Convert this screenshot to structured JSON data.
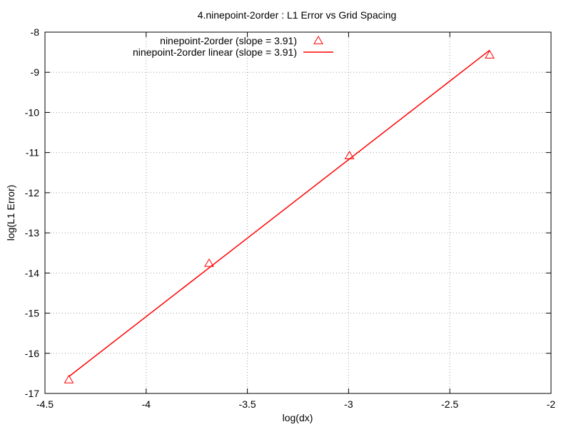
{
  "chart_data": {
    "type": "line",
    "title": "4.ninepoint-2order : L1 Error vs Grid Spacing",
    "xlabel": "log(dx)",
    "ylabel": "log(L1 Error)",
    "xlim": [
      -4.5,
      -2
    ],
    "ylim": [
      -17,
      -8
    ],
    "xticks": [
      -4.5,
      -4,
      -3.5,
      -3,
      -2.5,
      -2
    ],
    "xtick_labels": [
      "-4.5",
      "-4",
      "-3.5",
      "-3",
      "-2.5",
      "-2"
    ],
    "yticks": [
      -17,
      -16,
      -15,
      -14,
      -13,
      -12,
      -11,
      -10,
      -9,
      -8
    ],
    "ytick_labels": [
      "-17",
      "-16",
      "-15",
      "-14",
      "-13",
      "-12",
      "-11",
      "-10",
      "-9",
      "-8"
    ],
    "grid": true,
    "legend_position": "top-left",
    "series": [
      {
        "name": "ninepoint-2order (slope = 3.91)",
        "style": "scatter",
        "marker": "triangle-open",
        "color": "#ff0000",
        "x": [
          -4.382,
          -3.689,
          -2.996,
          -2.303
        ],
        "y": [
          -16.66,
          -13.76,
          -11.08,
          -8.57
        ]
      },
      {
        "name": "ninepoint-2order linear (slope = 3.91)",
        "style": "line",
        "color": "#ff0000",
        "x": [
          -4.382,
          -2.303
        ],
        "y": [
          -16.58,
          -8.45
        ]
      }
    ]
  }
}
